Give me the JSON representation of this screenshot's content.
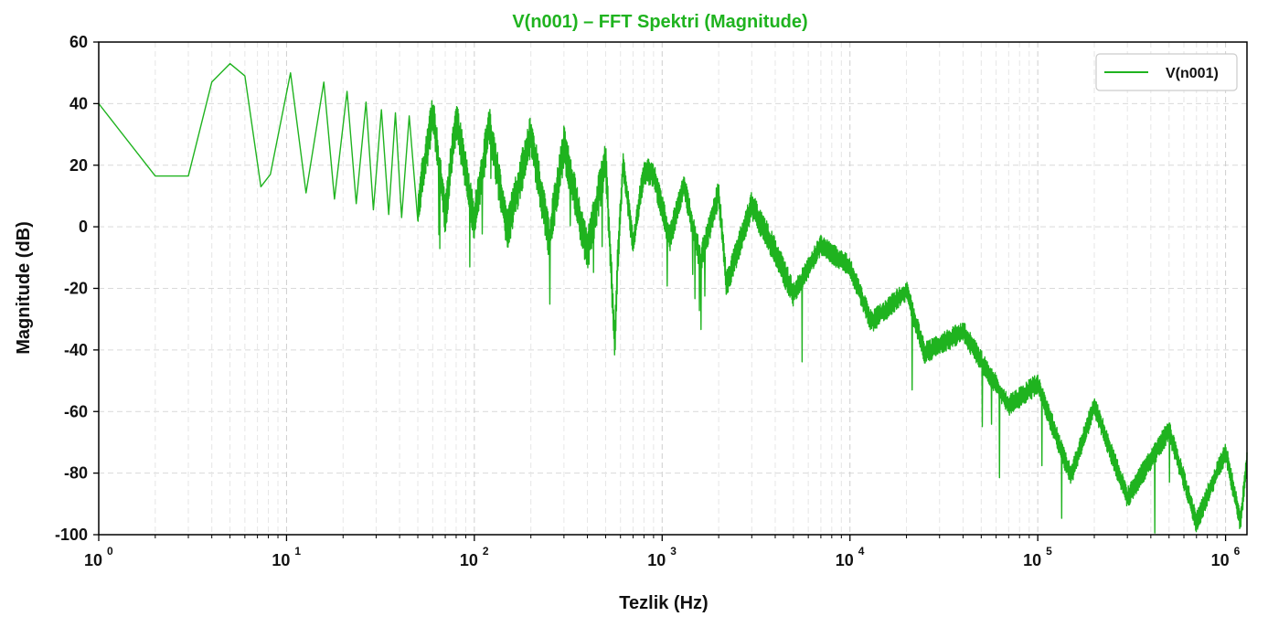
{
  "chart_data": {
    "type": "line",
    "title": "V(n001) – FFT Spektri (Magnitude)",
    "xlabel": "Tezlik (Hz)",
    "ylabel": "Magnitude (dB)",
    "x_scale": "log",
    "xlim": [
      1,
      1300000
    ],
    "ylim": [
      -100,
      60
    ],
    "y_ticks": [
      60,
      40,
      20,
      0,
      -20,
      -40,
      -60,
      -80,
      -100
    ],
    "x_ticks": [
      {
        "base": "10",
        "exp": "0",
        "value": 1
      },
      {
        "base": "10",
        "exp": "1",
        "value": 10
      },
      {
        "base": "10",
        "exp": "2",
        "value": 100
      },
      {
        "base": "10",
        "exp": "3",
        "value": 1000
      },
      {
        "base": "10",
        "exp": "4",
        "value": 10000
      },
      {
        "base": "10",
        "exp": "5",
        "value": 100000
      },
      {
        "base": "10",
        "exp": "6",
        "value": 1000000
      }
    ],
    "grid": true,
    "legend_position": "top-right",
    "series": [
      {
        "name": "V(n001)",
        "color": "#1fb31f",
        "points": [
          [
            1,
            40
          ],
          [
            2,
            16.5
          ],
          [
            3,
            16.5
          ],
          [
            4,
            47
          ],
          [
            5,
            53
          ],
          [
            6,
            49
          ],
          [
            7.3,
            13
          ],
          [
            8.2,
            17
          ],
          [
            10.5,
            50
          ],
          [
            12.7,
            11
          ],
          [
            15.8,
            47
          ],
          [
            18,
            9
          ],
          [
            21,
            44
          ],
          [
            23.5,
            7.5
          ],
          [
            26.5,
            40.5
          ],
          [
            29,
            5.5
          ],
          [
            32,
            38
          ],
          [
            35,
            4
          ],
          [
            38,
            37
          ],
          [
            41,
            3
          ],
          [
            45,
            36
          ],
          [
            50,
            2
          ],
          [
            60,
            33
          ],
          [
            70,
            0
          ],
          [
            80,
            31
          ],
          [
            100,
            -2
          ],
          [
            120,
            29
          ],
          [
            150,
            -5
          ],
          [
            200,
            26
          ],
          [
            250,
            -8
          ],
          [
            300,
            22
          ],
          [
            400,
            -12
          ],
          [
            500,
            18
          ],
          [
            560,
            -43
          ],
          [
            580,
            -15
          ],
          [
            620,
            17
          ],
          [
            700,
            -10
          ],
          [
            800,
            14
          ],
          [
            900,
            13
          ],
          [
            1100,
            -8
          ],
          [
            1300,
            10
          ],
          [
            1600,
            -15
          ],
          [
            2000,
            7
          ],
          [
            2200,
            -23
          ],
          [
            3000,
            3
          ],
          [
            4000,
            -12
          ],
          [
            5000,
            -26
          ],
          [
            7000,
            -10
          ],
          [
            10000,
            -17
          ],
          [
            13000,
            -35
          ],
          [
            20000,
            -25
          ],
          [
            25000,
            -45
          ],
          [
            40000,
            -38
          ],
          [
            70000,
            -62
          ],
          [
            100000,
            -55
          ],
          [
            150000,
            -85
          ],
          [
            200000,
            -62
          ],
          [
            300000,
            -92
          ],
          [
            500000,
            -70
          ],
          [
            700000,
            -100
          ],
          [
            1000000,
            -77
          ],
          [
            1200000,
            -100
          ],
          [
            1300000,
            -80
          ]
        ]
      }
    ]
  }
}
